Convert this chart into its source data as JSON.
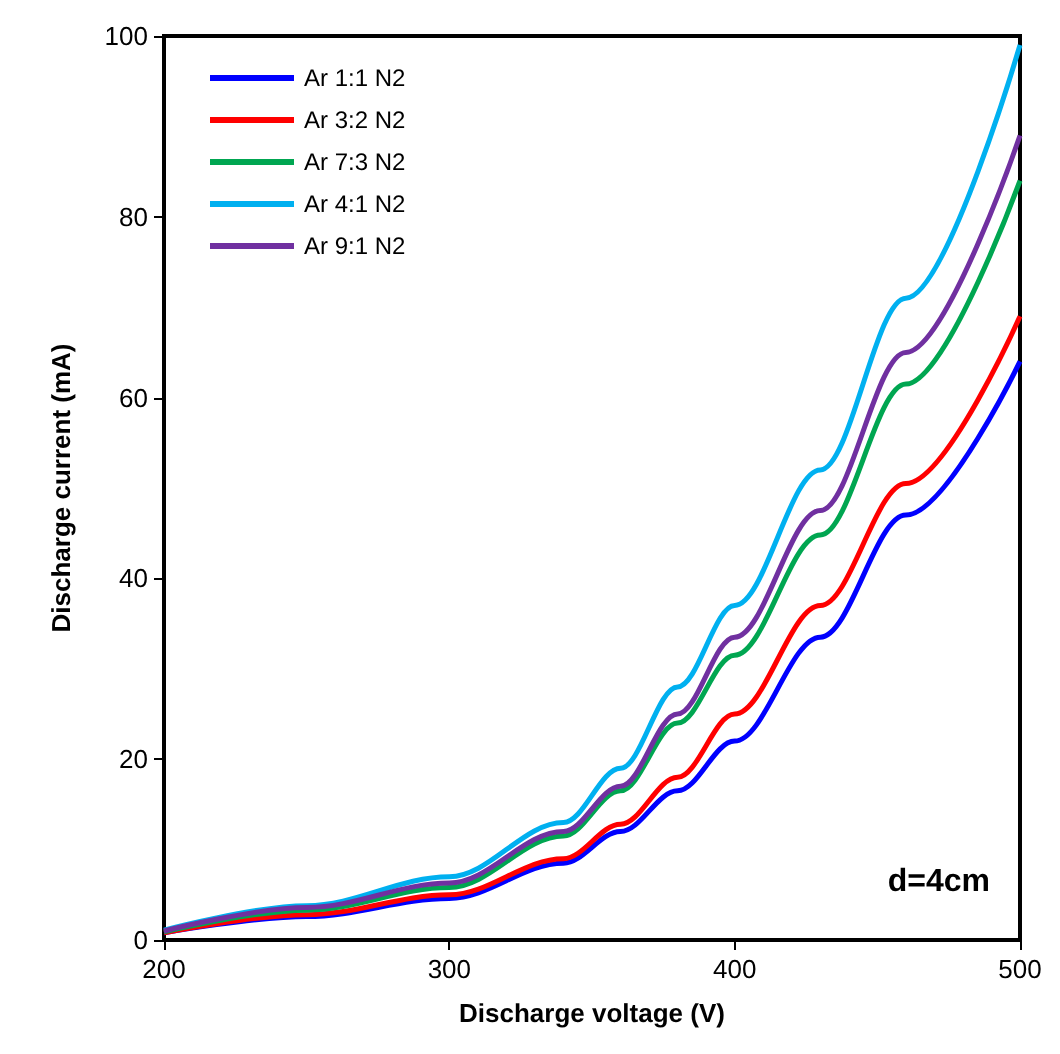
{
  "chart_data": {
    "type": "line",
    "xlabel": "Discharge voltage (V)",
    "ylabel": "Discharge current (mA)",
    "x": [
      200,
      250,
      300,
      340,
      360,
      380,
      400,
      430,
      460,
      500
    ],
    "series": [
      {
        "name": "Ar 1:1 N2",
        "color": "#0000ff",
        "values": [
          0.8,
          2.6,
          4.6,
          8.5,
          12,
          16.5,
          22,
          33.5,
          47,
          64
        ]
      },
      {
        "name": "Ar 3:2 N2",
        "color": "#ff0000",
        "values": [
          0.8,
          2.8,
          5,
          9,
          12.8,
          18,
          25,
          37,
          50.5,
          69
        ]
      },
      {
        "name": "Ar 7:3 N2",
        "color": "#00a651",
        "values": [
          0.9,
          3.3,
          5.8,
          11.5,
          16.5,
          24,
          31.5,
          44.8,
          61.5,
          84
        ]
      },
      {
        "name": "Ar 4:1 N2",
        "color": "#00b0f0",
        "values": [
          1.1,
          3.8,
          7,
          13,
          19,
          28,
          37,
          52,
          71,
          99
        ]
      },
      {
        "name": "Ar 9:1 N2",
        "color": "#7030a0",
        "values": [
          1,
          3.6,
          6.3,
          12,
          17,
          25,
          33.5,
          47.5,
          65,
          89
        ]
      }
    ],
    "xlim": [
      200,
      500
    ],
    "xticks": [
      200,
      300,
      400,
      500
    ],
    "ylim": [
      0,
      100
    ],
    "yticks": [
      0,
      20,
      40,
      60,
      80,
      100
    ],
    "annotations": [
      "d=4cm"
    ],
    "legend": "top left",
    "grid": false,
    "marker": "none",
    "line_style": "solid"
  }
}
